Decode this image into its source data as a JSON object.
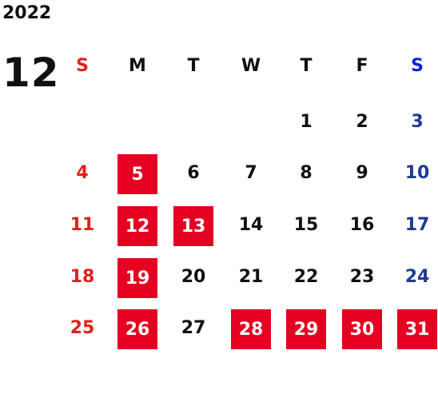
{
  "calendar": {
    "year": "2022",
    "month": "12",
    "weekdays": [
      "S",
      "M",
      "T",
      "W",
      "T",
      "F",
      "S"
    ],
    "weeks": [
      [
        null,
        null,
        null,
        null,
        {
          "day": 1,
          "closed": false
        },
        {
          "day": 2,
          "closed": false
        },
        {
          "day": 3,
          "closed": false
        }
      ],
      [
        {
          "day": 4,
          "closed": false
        },
        {
          "day": 5,
          "closed": true
        },
        {
          "day": 6,
          "closed": false
        },
        {
          "day": 7,
          "closed": false
        },
        {
          "day": 8,
          "closed": false
        },
        {
          "day": 9,
          "closed": false
        },
        {
          "day": 10,
          "closed": false
        }
      ],
      [
        {
          "day": 11,
          "closed": false
        },
        {
          "day": 12,
          "closed": true
        },
        {
          "day": 13,
          "closed": true
        },
        {
          "day": 14,
          "closed": false
        },
        {
          "day": 15,
          "closed": false
        },
        {
          "day": 16,
          "closed": false
        },
        {
          "day": 17,
          "closed": false
        }
      ],
      [
        {
          "day": 18,
          "closed": false
        },
        {
          "day": 19,
          "closed": true
        },
        {
          "day": 20,
          "closed": false
        },
        {
          "day": 21,
          "closed": false
        },
        {
          "day": 22,
          "closed": false
        },
        {
          "day": 23,
          "closed": false
        },
        {
          "day": 24,
          "closed": false
        }
      ],
      [
        {
          "day": 25,
          "closed": false
        },
        {
          "day": 26,
          "closed": true
        },
        {
          "day": 27,
          "closed": false
        },
        {
          "day": 28,
          "closed": true
        },
        {
          "day": 29,
          "closed": true
        },
        {
          "day": 30,
          "closed": true
        },
        {
          "day": 31,
          "closed": true
        }
      ]
    ]
  }
}
